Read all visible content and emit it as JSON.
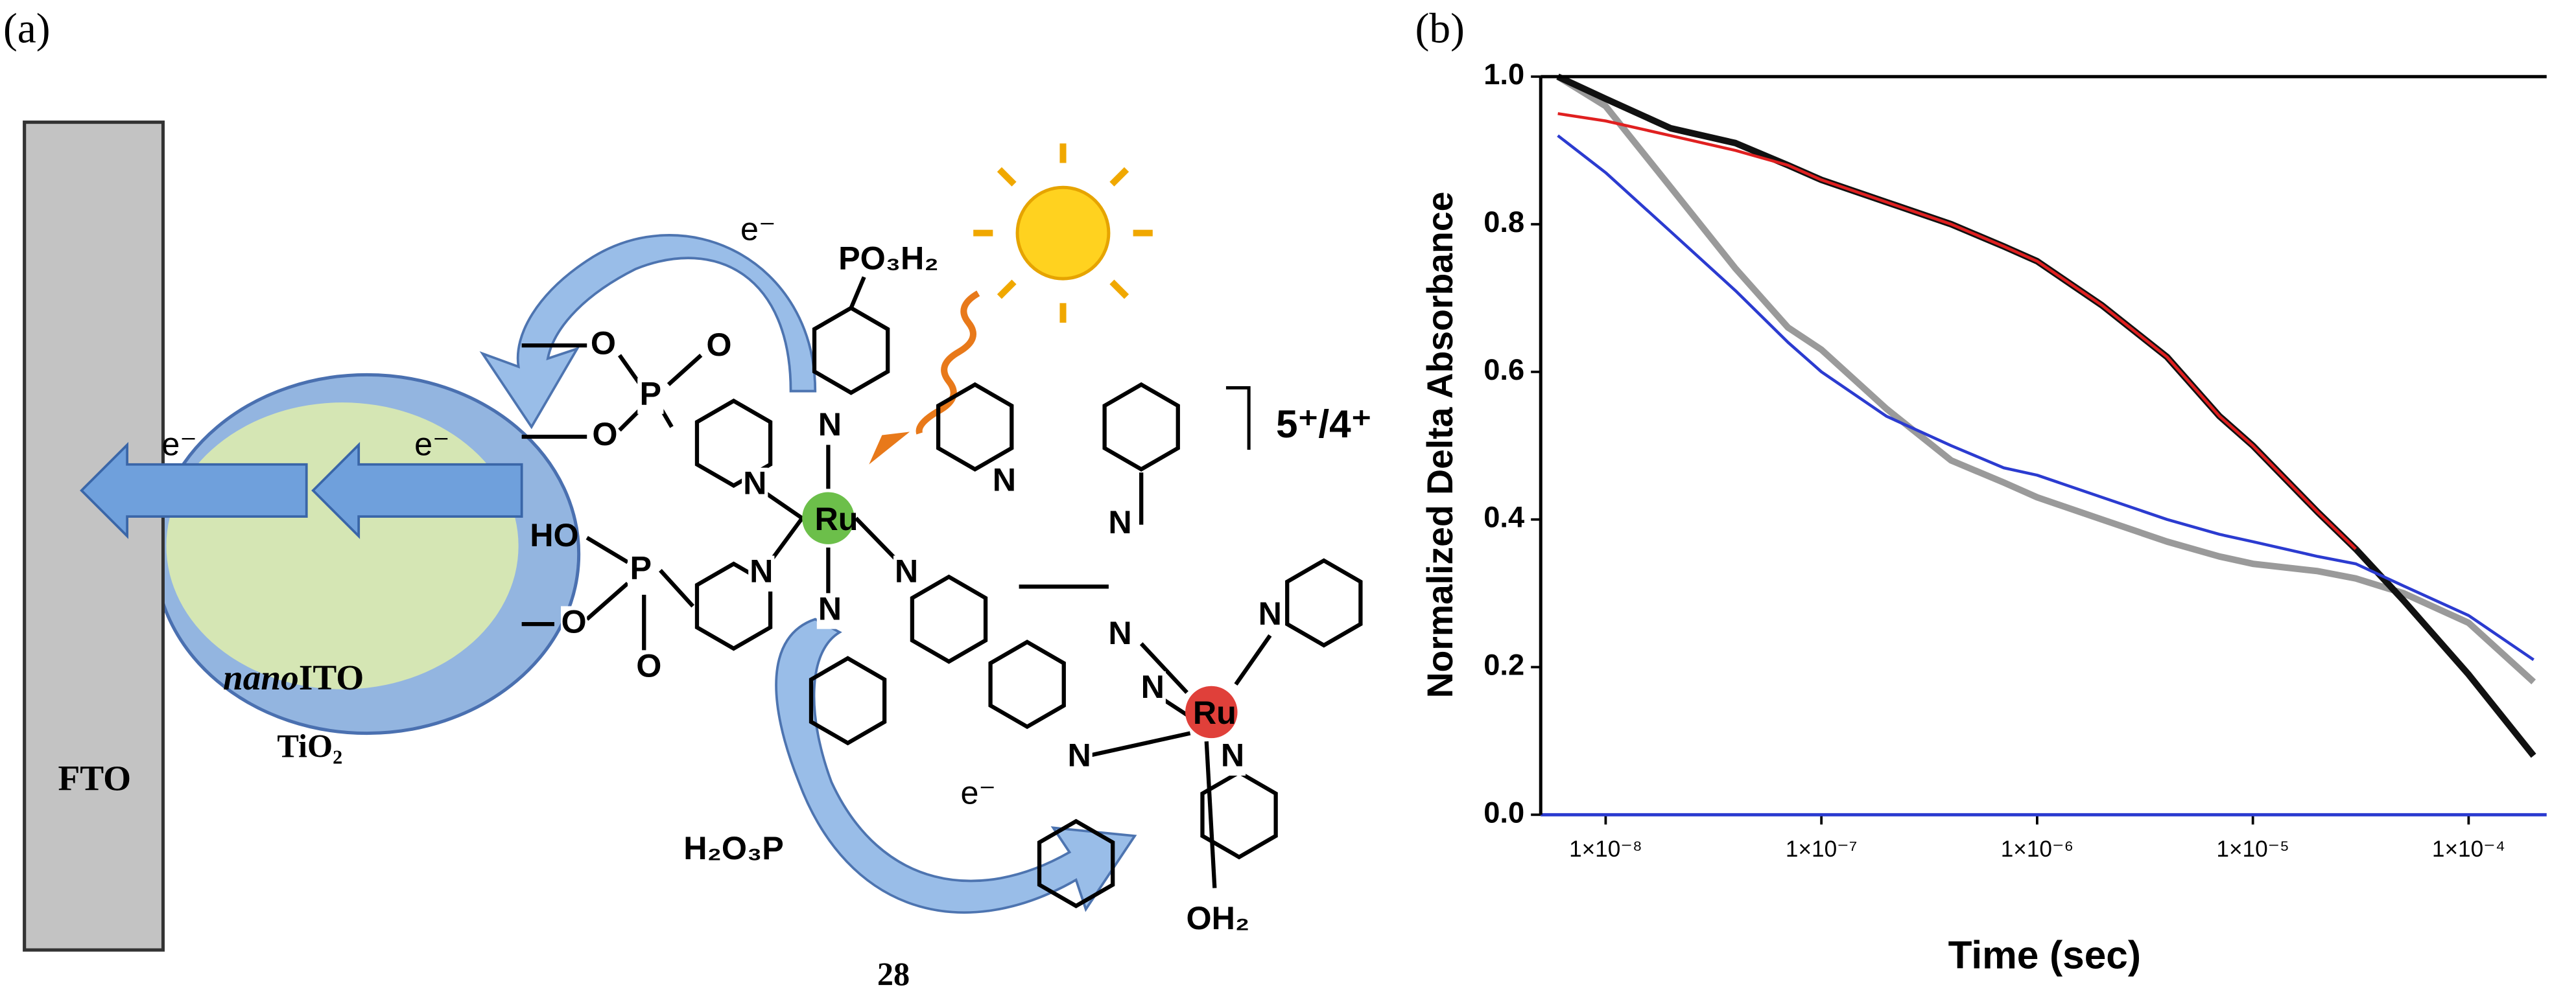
{
  "panel_a": {
    "label": "(a)",
    "substrate": "FTO",
    "particle": {
      "prefix": "nano",
      "core": "ITO",
      "shell": "TiO₂"
    },
    "electrons": [
      "e⁻",
      "e⁻",
      "e⁻",
      "e⁻"
    ],
    "groups": [
      "PO₃H₂",
      "HO",
      "H₂O₃P",
      "OH₂"
    ],
    "metals": [
      "Ru",
      "Ru"
    ],
    "charge": "5⁺/4⁺",
    "compound": "28",
    "atoms": [
      "O",
      "P",
      "O",
      "O",
      "O",
      "P",
      "O",
      "N",
      "N",
      "N",
      "N",
      "N",
      "N",
      "N",
      "N",
      "N",
      "N",
      "N",
      "N"
    ]
  },
  "chart_data": {
    "type": "line",
    "label": "(b)",
    "xlabel": "Time (sec)",
    "ylabel": "Normalized Delta Absorbance",
    "xscale": "log",
    "xlim": [
      5e-09,
      0.00023
    ],
    "ylim": [
      0,
      1
    ],
    "xticks": [
      {
        "value": 1e-08,
        "label": "1×10⁻⁸"
      },
      {
        "value": 1e-07,
        "label": "1×10⁻⁷"
      },
      {
        "value": 1e-06,
        "label": "1×10⁻⁶"
      },
      {
        "value": 1e-05,
        "label": "1×10⁻⁵"
      },
      {
        "value": 0.0001,
        "label": "1×10⁻⁴"
      }
    ],
    "yticks": [
      {
        "value": 0,
        "label": "0.0"
      },
      0.2,
      0.4,
      0.6,
      0.8,
      {
        "value": 1,
        "label": "1.0"
      }
    ],
    "x": [
      6e-09,
      1e-08,
      2e-08,
      4e-08,
      7e-08,
      1e-07,
      2e-07,
      4e-07,
      7e-07,
      1e-06,
      2e-06,
      4e-06,
      7e-06,
      1e-05,
      2e-05,
      3e-05,
      5e-05,
      0.0001,
      0.0002
    ],
    "series": [
      {
        "color": "#9a9a9a",
        "values": [
          1.0,
          0.96,
          0.85,
          0.74,
          0.66,
          0.63,
          0.55,
          0.48,
          0.45,
          0.43,
          0.4,
          0.37,
          0.35,
          0.34,
          0.33,
          0.32,
          0.3,
          0.26,
          0.18
        ]
      },
      {
        "color": "#111111",
        "values": [
          1.0,
          0.97,
          0.93,
          0.91,
          0.88,
          0.86,
          0.83,
          0.8,
          0.77,
          0.75,
          0.69,
          0.62,
          0.54,
          0.5,
          0.41,
          0.36,
          0.29,
          0.19,
          0.08
        ]
      },
      {
        "color": "#e02020",
        "values": [
          0.95,
          0.94,
          0.92,
          0.9,
          0.88,
          0.86,
          0.83,
          0.8,
          0.77,
          0.75,
          0.69,
          0.62,
          0.54,
          0.5,
          0.41,
          0.36,
          null,
          null,
          null
        ]
      },
      {
        "color": "#2b3bd0",
        "values": [
          0.92,
          0.87,
          0.79,
          0.71,
          0.64,
          0.6,
          0.54,
          0.5,
          0.47,
          0.46,
          0.43,
          0.4,
          0.38,
          0.37,
          0.35,
          0.34,
          0.31,
          0.27,
          0.21
        ]
      }
    ]
  }
}
